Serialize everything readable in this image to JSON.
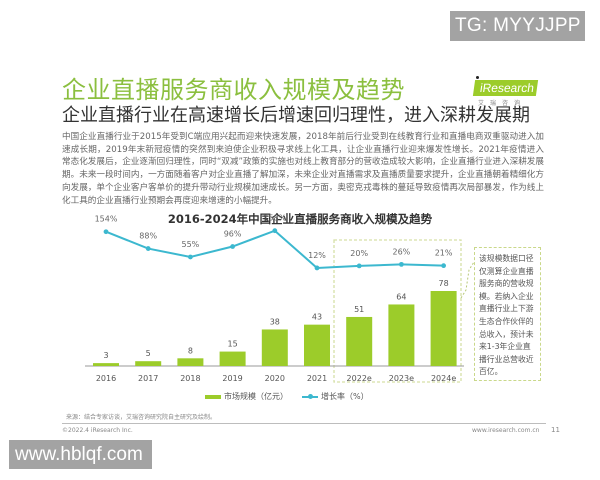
{
  "watermarks": {
    "top": "TG: MYYJJPP",
    "bottom": "www.hblqf.com"
  },
  "header": {
    "title": "企业直播服务商收入规模及趋势",
    "subtitle": "企业直播行业在高速增长后增速回归理性，进入深耕发展期",
    "logo_text": "iResearch",
    "logo_sub": "艾瑞咨询"
  },
  "body_text": "中国企业直播行业于2015年受到C端应用兴起而迎来快速发展，2018年前后行业受到在线教育行业和直播电商双重驱动进入加速成长期，2019年末新冠疫情的突然到来迫使企业积极寻求线上化工具，让企业直播行业迎来爆发性增长。2021年疫情进入常态化发展后，企业逐渐回归理性，同时“双减”政策的实施也对线上教育部分的营收造成较大影响，企业直播行业进入深耕发展期。未来一段时间内，一方面随着客户对企业直播了解加深，未来企业对直播需求及直播质量要求提升，企业直播朝着精细化方向发展，单个企业客户客单价的提升带动行业规模加速成长。另一方面，奥密克戎毒株的蔓延导致疫情再次局部暴发，作为线上化工具的企业直播行业预期会再度迎来增速的小幅提升。",
  "note": "该规模数据口径仅测算企业直播服务商的营收规模。若纳入企业直播行业上下游生态合作伙伴的总收入，预计未来1-3年企业直播行业总营收近百亿。",
  "legend": {
    "bar": "市场规模（亿元）",
    "line": "增长率（%）"
  },
  "footer": {
    "source": "来源：结合专家访谈，艾瑞咨询研究院自主研究及绘制。",
    "copyright": "©2022.4 iResearch Inc.",
    "website": "www.iresearch.com.cn",
    "page": "11"
  },
  "colors": {
    "bar": "#9ccc2a",
    "line": "#3cb8cf",
    "title": "#8bbf3f",
    "forecast_box": "#d6e0a8"
  },
  "chart_data": {
    "type": "bar",
    "title": "2016-2024年中国企业直播服务商收入规模及趋势",
    "categories": [
      "2016",
      "2017",
      "2018",
      "2019",
      "2020",
      "2021",
      "2022e",
      "2023e",
      "2024e"
    ],
    "series": [
      {
        "name": "市场规模（亿元）",
        "type": "bar",
        "values": [
          3,
          5,
          8,
          15,
          38,
          43,
          51,
          64,
          78
        ]
      },
      {
        "name": "增长率（%）",
        "type": "line",
        "values": [
          154,
          88,
          55,
          96,
          158,
          12,
          20,
          26,
          21
        ],
        "labels": [
          "154%",
          "88%",
          "55%",
          "96%",
          "158%",
          "12%",
          "20%",
          "26%",
          "21%"
        ]
      }
    ],
    "forecast_categories": [
      "2022e",
      "2023e",
      "2024e"
    ],
    "xlabel": "",
    "ylabel": "",
    "grid": false,
    "legend_position": "bottom"
  }
}
